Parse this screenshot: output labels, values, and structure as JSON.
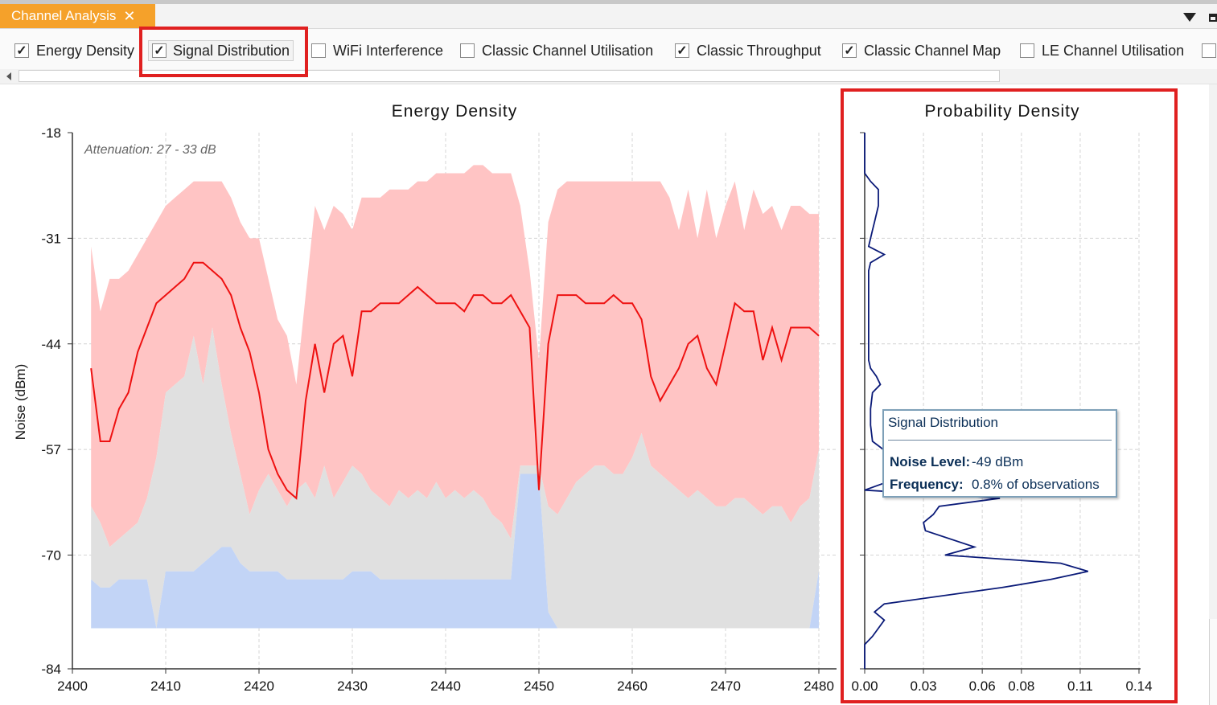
{
  "tab": {
    "title": "Channel Analysis",
    "close_glyph": "✕"
  },
  "options": [
    {
      "label": "Energy Density",
      "checked": true,
      "check": "✓"
    },
    {
      "label": "Signal Distribution",
      "checked": true,
      "check": "✓"
    },
    {
      "label": "WiFi Interference",
      "checked": false,
      "check": ""
    },
    {
      "label": "Classic Channel Utilisation",
      "checked": false,
      "check": ""
    },
    {
      "label": "Classic Throughput",
      "checked": true,
      "check": "✓"
    },
    {
      "label": "Classic Channel Map",
      "checked": true,
      "check": "✓"
    },
    {
      "label": "LE Channel Utilisation",
      "checked": false,
      "check": ""
    }
  ],
  "colors": {
    "accent_tab": "#f5a12a",
    "highlight": "#e02020",
    "max_band": "#ffc4c4",
    "mid_band": "#e0e0e0",
    "min_band": "#c2d4f6",
    "avg_line": "#ee1111",
    "pdf_line": "#0a1a78"
  },
  "chart_data": [
    {
      "type": "area",
      "title": "Energy Density",
      "annotation": "Attenuation: 27 - 33 dB",
      "ylabel": "Noise (dBm)",
      "xlabel": "",
      "xlim": [
        2400,
        2480
      ],
      "ylim": [
        -84,
        -18
      ],
      "x_ticks": [
        "2400",
        "2410",
        "2420",
        "2430",
        "2440",
        "2450",
        "2460",
        "2470",
        "2480"
      ],
      "y_ticks": [
        "-18",
        "-31",
        "-44",
        "-57",
        "-70",
        "-84"
      ],
      "grid": true,
      "x": [
        2402,
        2403,
        2404,
        2405,
        2406,
        2407,
        2408,
        2409,
        2410,
        2411,
        2412,
        2413,
        2414,
        2415,
        2416,
        2417,
        2418,
        2419,
        2420,
        2421,
        2422,
        2423,
        2424,
        2425,
        2426,
        2427,
        2428,
        2429,
        2430,
        2431,
        2432,
        2433,
        2434,
        2435,
        2436,
        2437,
        2438,
        2439,
        2440,
        2441,
        2442,
        2443,
        2444,
        2445,
        2446,
        2447,
        2448,
        2449,
        2450,
        2451,
        2452,
        2453,
        2454,
        2455,
        2456,
        2457,
        2458,
        2459,
        2460,
        2461,
        2462,
        2463,
        2464,
        2465,
        2466,
        2467,
        2468,
        2469,
        2470,
        2471,
        2472,
        2473,
        2474,
        2475,
        2476,
        2477,
        2478,
        2479,
        2480
      ],
      "series": [
        {
          "role": "max",
          "values": [
            -32,
            -40,
            -36,
            -36,
            -35,
            -33,
            -31,
            -29,
            -27,
            -26,
            -25,
            -24,
            -24,
            -24,
            -24,
            -26,
            -29,
            -31,
            -31,
            -36,
            -41,
            -43,
            -49,
            -38,
            -27,
            -30,
            -27,
            -28,
            -30,
            -26,
            -26,
            -26,
            -25,
            -25,
            -25,
            -24,
            -24,
            -23,
            -23,
            -23,
            -23,
            -22,
            -22,
            -23,
            -23,
            -23,
            -27,
            -35,
            -46,
            -29,
            -25,
            -24,
            -24,
            -24,
            -24,
            -24,
            -24,
            -24,
            -24,
            -24,
            -24,
            -24,
            -26,
            -30,
            -25,
            -31,
            -25,
            -31,
            -27,
            -24,
            -30,
            -25,
            -28,
            -27,
            -30,
            -27,
            -27,
            -28,
            -28
          ]
        },
        {
          "role": "mid",
          "values": [
            -64,
            -66,
            -69,
            -68,
            -67,
            -66,
            -63,
            -58,
            -50,
            -49,
            -48,
            -43,
            -49,
            -42,
            -49,
            -55,
            -60,
            -65,
            -62,
            -60,
            -62,
            -64,
            -62,
            -61,
            -63,
            -59,
            -63,
            -61,
            -59,
            -60,
            -62,
            -63,
            -64,
            -62,
            -63,
            -62,
            -63,
            -61,
            -63,
            -62,
            -63,
            -62,
            -63,
            -65,
            -66,
            -68,
            -59,
            -59,
            -59,
            -64,
            -65,
            -63,
            -61,
            -60,
            -59,
            -59,
            -60,
            -60,
            -58,
            -55,
            -59,
            -60,
            -61,
            -62,
            -63,
            -62,
            -63,
            -64,
            -64,
            -63,
            -63,
            -64,
            -65,
            -64,
            -64,
            -66,
            -64,
            -63,
            -57
          ]
        },
        {
          "role": "min",
          "values": [
            -73,
            -74,
            -74,
            -73,
            -73,
            -73,
            -73,
            -79,
            -72,
            -72,
            -72,
            -72,
            -71,
            -70,
            -69,
            -69,
            -71,
            -72,
            -72,
            -72,
            -72,
            -73,
            -73,
            -73,
            -73,
            -73,
            -73,
            -73,
            -72,
            -72,
            -72,
            -73,
            -73,
            -73,
            -73,
            -73,
            -73,
            -73,
            -73,
            -73,
            -73,
            -73,
            -73,
            -73,
            -73,
            -73,
            -60,
            -60,
            -60,
            -77,
            -79,
            -79,
            -79,
            -79,
            -79,
            -79,
            -79,
            -79,
            -79,
            -79,
            -79,
            -79,
            -79,
            -79,
            -79,
            -79,
            -79,
            -79,
            -79,
            -79,
            -79,
            -79,
            -79,
            -79,
            -79,
            -79,
            -79,
            -79,
            -72
          ]
        },
        {
          "role": "avg",
          "values": [
            -47,
            -56,
            -56,
            -52,
            -50,
            -45,
            -42,
            -39,
            -38,
            -37,
            -36,
            -34,
            -34,
            -35,
            -36,
            -38,
            -42,
            -45,
            -50,
            -57,
            -60,
            -62,
            -63,
            -51,
            -44,
            -50,
            -44,
            -43,
            -48,
            -40,
            -40,
            -39,
            -39,
            -39,
            -38,
            -37,
            -38,
            -39,
            -39,
            -39,
            -40,
            -38,
            -38,
            -39,
            -39,
            -38,
            -40,
            -42,
            -62,
            -44,
            -38,
            -38,
            -38,
            -39,
            -39,
            -39,
            -38,
            -39,
            -39,
            -41,
            -48,
            -51,
            -49,
            -47,
            -44,
            -43,
            -47,
            -49,
            -44,
            -39,
            -40,
            -40,
            -46,
            -42,
            -46,
            -42,
            -42,
            -42,
            -43
          ]
        }
      ]
    },
    {
      "type": "line",
      "title": "Probability Density",
      "xlim": [
        0,
        0.14
      ],
      "ylim": [
        -84,
        -18
      ],
      "x_ticks": [
        "0.00",
        "0.03",
        "0.06",
        "0.08",
        "0.11",
        "0.14"
      ],
      "grid": true,
      "series": [
        {
          "name": "Signal Distribution",
          "noise_dbm": [
            -18,
            -23,
            -24,
            -25,
            -27,
            -29,
            -30,
            -32,
            -33,
            -34,
            -35,
            -36,
            -38,
            -40,
            -42,
            -44,
            -46,
            -47,
            -48,
            -49,
            -50,
            -52,
            -54,
            -56,
            -58,
            -60,
            -62,
            -63,
            -64,
            -65,
            -66,
            -67,
            -69,
            -70,
            -71,
            -72,
            -73,
            -74,
            -76,
            -77,
            -78,
            -80,
            -81,
            -84
          ],
          "density": [
            0.0,
            0.0,
            0.003,
            0.007,
            0.007,
            0.005,
            0.004,
            0.002,
            0.01,
            0.003,
            0.002,
            0.002,
            0.002,
            0.002,
            0.002,
            0.002,
            0.002,
            0.003,
            0.006,
            0.008,
            0.004,
            0.003,
            0.003,
            0.004,
            0.015,
            0.023,
            0.0,
            0.069,
            0.038,
            0.035,
            0.03,
            0.031,
            0.056,
            0.041,
            0.1,
            0.114,
            0.095,
            0.07,
            0.01,
            0.005,
            0.01,
            0.004,
            0.0,
            0.0
          ]
        }
      ]
    }
  ],
  "tooltip": {
    "title": "Signal Distribution",
    "rows": [
      {
        "key": "Noise Level:",
        "value": "-49 dBm"
      },
      {
        "key": "Frequency:",
        "value": "0.8% of observations"
      }
    ]
  }
}
